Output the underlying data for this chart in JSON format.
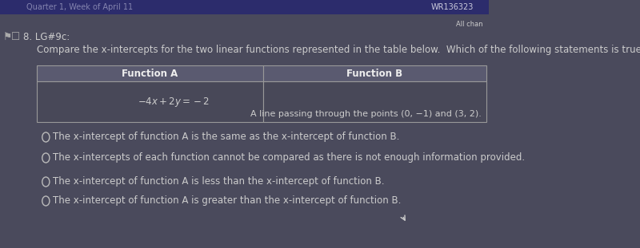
{
  "bg_color": "#4a4a5c",
  "top_bar_color": "#2c2c6c",
  "top_bar_text": "Quarter 1, Week of April 11",
  "top_right_text": "WR136323",
  "all_changes_text": "All chan",
  "question_label": "8. LG#9c:",
  "question_text": "Compare the x-intercepts for the two linear functions represented in the table below.  Which of the following statements is true?",
  "table_header_bg": "#5a5a70",
  "table_body_bg": "#484858",
  "table_border_color": "#999999",
  "table_header_A": "Function A",
  "table_header_B": "Function B",
  "table_cell_A": "$-4x + 2y = -2$",
  "table_cell_B": "A line passing through the points (0, −1) and (3, 2).",
  "options": [
    "The x-intercept of function A is the same as the x-intercept of function B.",
    "The x-intercepts of each function cannot be compared as there is not enough information provided.",
    "The x-intercept of function A is less than the x-intercept of function B.",
    "The x-intercept of function A is greater than the x-intercept of function B."
  ],
  "option_circle_color": "#bbbbbb",
  "text_color": "#cccccc",
  "header_text_color": "#eeeeee",
  "font_size_small": 7,
  "font_size_question": 8.5,
  "font_size_table": 8.5,
  "font_size_options": 8.5,
  "icon_color": "#aaaaaa"
}
